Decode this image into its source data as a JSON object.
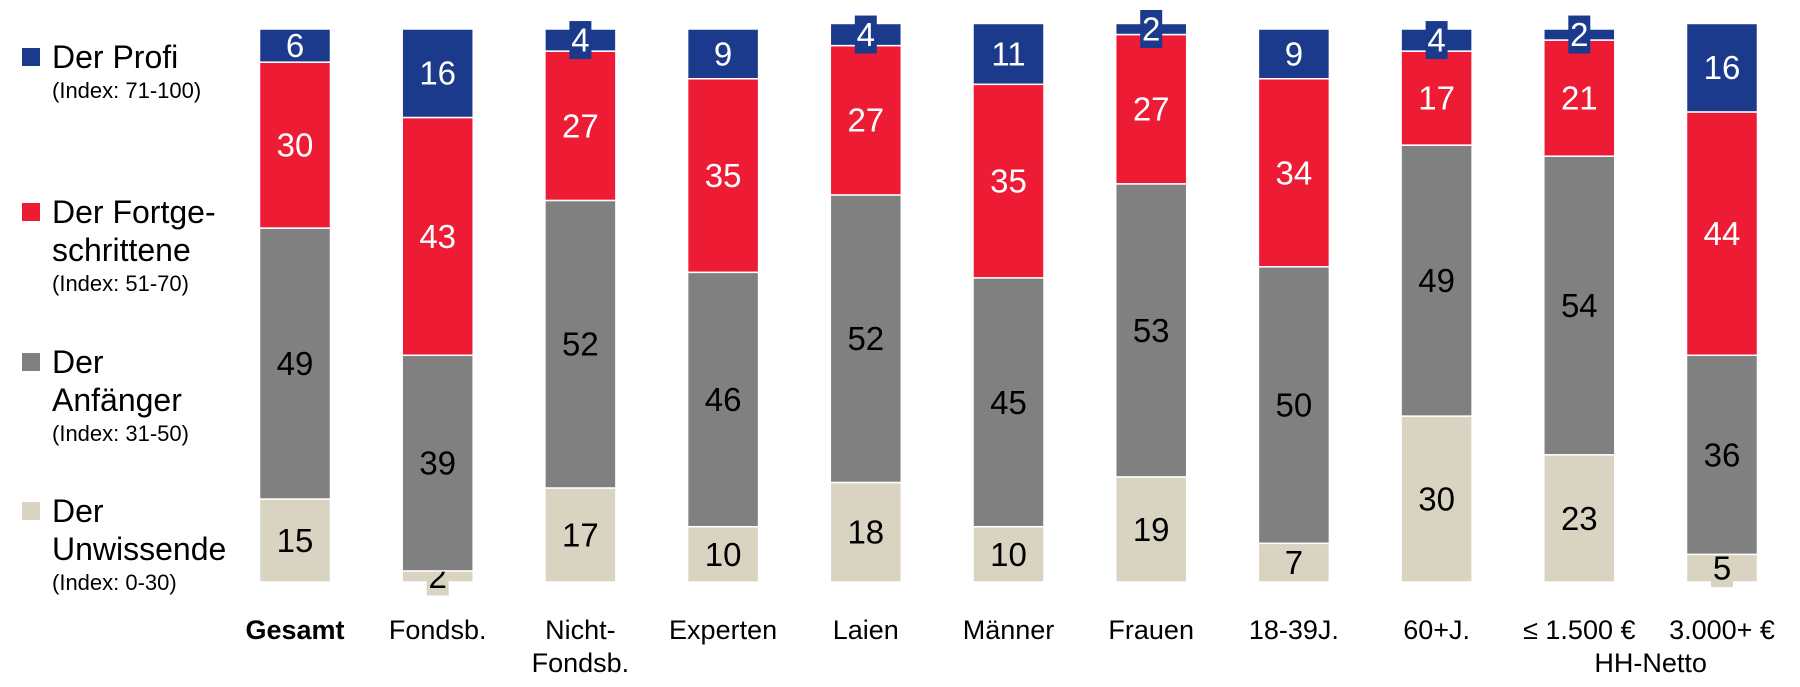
{
  "chart_data": {
    "type": "stacked_bar",
    "categories": [
      "Gesamt",
      "Fondsb.",
      "Nicht-\nFondsb.",
      "Experten",
      "Laien",
      "Männer",
      "Frauen",
      "18-39J.",
      "60+J.",
      "≤ 1.500 €",
      "3.000+ €"
    ],
    "annotation": "HH-Netto",
    "ylim": [
      0,
      100
    ],
    "series": [
      {
        "name": "Der\nUnwissende",
        "subtitle": "(Index: 0-30)",
        "color": "#d9d4c2",
        "label_color": "#000000",
        "values": [
          15,
          2,
          17,
          10,
          18,
          10,
          19,
          7,
          30,
          23,
          5
        ]
      },
      {
        "name": "Der\nAnfänger",
        "subtitle": "(Index: 31-50)",
        "color": "#808080",
        "label_color": "#000000",
        "values": [
          49,
          39,
          52,
          46,
          52,
          45,
          53,
          50,
          49,
          54,
          36
        ]
      },
      {
        "name": "Der Fortge-\nschrittene",
        "subtitle": "(Index: 51-70)",
        "color": "#ed1b34",
        "label_color": "#ffffff",
        "values": [
          30,
          43,
          27,
          35,
          27,
          35,
          27,
          34,
          17,
          21,
          44
        ]
      },
      {
        "name": "Der Profi",
        "subtitle": "(Index: 71-100)",
        "color": "#1b3a8c",
        "label_color": "#ffffff",
        "values": [
          6,
          16,
          4,
          9,
          4,
          11,
          2,
          9,
          4,
          2,
          16
        ]
      }
    ]
  }
}
